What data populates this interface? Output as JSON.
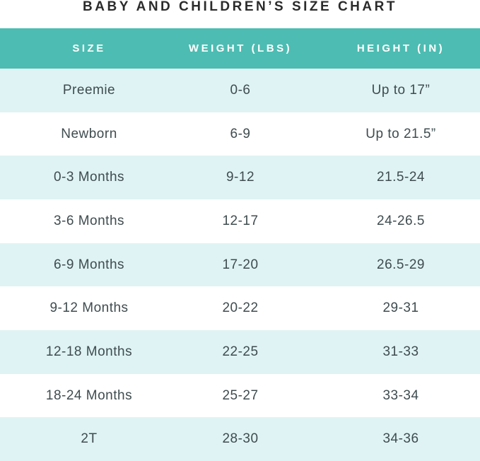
{
  "chart_data": {
    "type": "table",
    "title": "BABY AND CHILDREN’S SIZE CHART",
    "columns": [
      "SIZE",
      "WEIGHT (LBS)",
      "HEIGHT (IN)"
    ],
    "rows": [
      [
        "Preemie",
        "0-6",
        "Up to 17”"
      ],
      [
        "Newborn",
        "6-9",
        "Up to 21.5”"
      ],
      [
        "0-3 Months",
        "9-12",
        "21.5-24"
      ],
      [
        "3-6 Months",
        "12-17",
        "24-26.5"
      ],
      [
        "6-9 Months",
        "17-20",
        "26.5-29"
      ],
      [
        "9-12 Months",
        "20-22",
        "29-31"
      ],
      [
        "12-18 Months",
        "22-25",
        "31-33"
      ],
      [
        "18-24 Months",
        "25-27",
        "33-34"
      ],
      [
        "2T",
        "28-30",
        "34-36"
      ]
    ],
    "layout": {
      "row_striping": "odd rows light teal, even rows white",
      "alignment": "center"
    }
  },
  "colors": {
    "header_bg": "#4dbcb2",
    "header_text": "#ffffff",
    "row_alt_bg": "#dff3f4",
    "row_bg": "#ffffff",
    "title_text": "#2b2b2b",
    "body_text": "#3f4c4f"
  }
}
